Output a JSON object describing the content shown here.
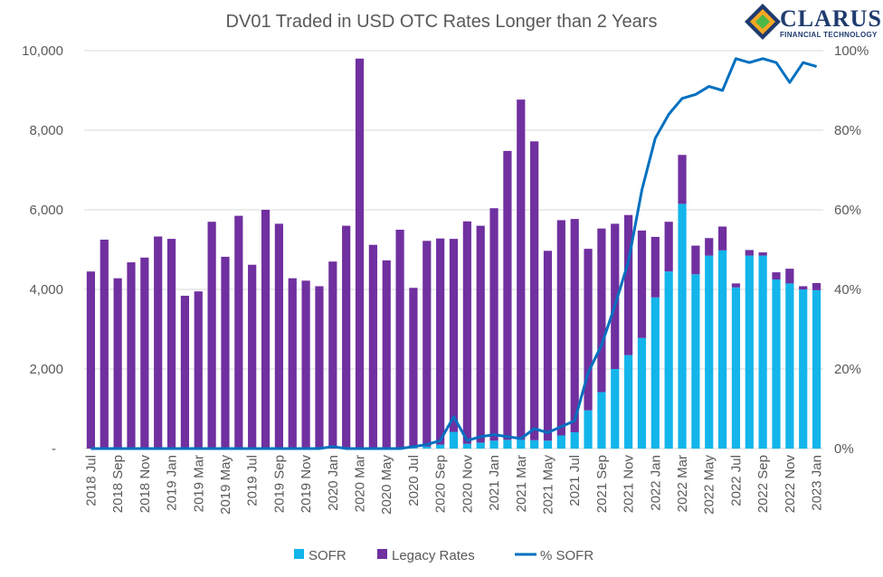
{
  "logo": {
    "name": "CLARUS",
    "tagline": "FINANCIAL TECHNOLOGY"
  },
  "chart_data": {
    "type": "bar",
    "stacked": true,
    "title": "DV01 Traded in USD OTC Rates Longer than 2 Years",
    "categories": [
      "2018 Jul",
      "2018 Aug",
      "2018 Sep",
      "2018 Oct",
      "2018 Nov",
      "2018 Dec",
      "2019 Jan",
      "2019 Feb",
      "2019 Mar",
      "2019 Apr",
      "2019 May",
      "2019 Jun",
      "2019 Jul",
      "2019 Aug",
      "2019 Sep",
      "2019 Oct",
      "2019 Nov",
      "2019 Dec",
      "2020 Jan",
      "2020 Feb",
      "2020 Mar",
      "2020 Apr",
      "2020 May",
      "2020 Jun",
      "2020 Jul",
      "2020 Aug",
      "2020 Sep",
      "2020 Oct",
      "2020 Nov",
      "2020 Dec",
      "2021 Jan",
      "2021 Feb",
      "2021 Mar",
      "2021 Apr",
      "2021 May",
      "2021 Jun",
      "2021 Jul",
      "2021 Aug",
      "2021 Sep",
      "2021 Oct",
      "2021 Nov",
      "2021 Dec",
      "2022 Jan",
      "2022 Feb",
      "2022 Mar",
      "2022 Apr",
      "2022 May",
      "2022 Jun",
      "2022 Jul",
      "2022 Aug",
      "2022 Sep",
      "2022 Oct",
      "2022 Nov",
      "2022 Dec",
      "2023 Jan"
    ],
    "x_tick_labels": [
      "2018 Jul",
      "2018 Sep",
      "2018 Nov",
      "2019 Jan",
      "2019 Mar",
      "2019 May",
      "2019 Jul",
      "2019 Sep",
      "2019 Nov",
      "2020 Jan",
      "2020 Mar",
      "2020 May",
      "2020 Jul",
      "2020 Sep",
      "2020 Nov",
      "2021 Jan",
      "2021 Mar",
      "2021 May",
      "2021 Jul",
      "2021 Sep",
      "2021 Nov",
      "2022 Jan",
      "2022 Mar",
      "2022 May",
      "2022 Jul",
      "2022 Sep",
      "2022 Nov",
      "2023 Jan"
    ],
    "series": [
      {
        "name": "SOFR",
        "type": "bar",
        "color": "#13b5ea",
        "values": [
          0,
          0,
          0,
          0,
          0,
          0,
          0,
          0,
          0,
          0,
          0,
          0,
          0,
          0,
          0,
          0,
          0,
          0,
          0,
          0,
          0,
          0,
          0,
          0,
          20,
          50,
          100,
          420,
          120,
          150,
          200,
          220,
          220,
          210,
          200,
          330,
          410,
          960,
          1420,
          2000,
          2350,
          2780,
          3800,
          4450,
          6150,
          4380,
          4850,
          4980,
          4050,
          4850,
          4850,
          4250,
          4150,
          4000,
          3980
        ]
      },
      {
        "name": "Legacy Rates",
        "type": "bar",
        "color": "#7030a0",
        "values": [
          4450,
          5250,
          4280,
          4680,
          4800,
          5330,
          5270,
          3840,
          3950,
          5700,
          4820,
          5850,
          4620,
          6000,
          5650,
          4280,
          4220,
          4080,
          4700,
          5600,
          9800,
          5120,
          4730,
          5500,
          4020,
          5170,
          5180,
          4850,
          5590,
          5450,
          5840,
          7260,
          8550,
          7510,
          4770,
          5410,
          5360,
          4060,
          4110,
          3650,
          3520,
          2700,
          1520,
          1250,
          1230,
          720,
          440,
          600,
          100,
          140,
          80,
          180,
          370,
          80,
          180
        ]
      },
      {
        "name": "% SOFR",
        "type": "line",
        "axis": "right",
        "color": "#0070c0",
        "values": [
          0,
          0,
          0,
          0,
          0,
          0,
          0,
          0,
          0,
          0,
          0,
          0,
          0,
          0,
          0,
          0,
          0,
          0,
          0.5,
          0,
          0,
          0,
          0,
          0,
          0.5,
          1,
          2,
          8,
          2,
          3,
          3.5,
          3,
          2.5,
          5,
          4,
          5.5,
          7,
          19,
          26,
          36,
          47,
          65,
          78,
          84,
          88,
          89,
          91,
          90,
          98,
          97,
          98,
          97,
          92,
          97,
          96
        ]
      }
    ],
    "y_left": {
      "ticks": [
        "-",
        "2,000",
        "4,000",
        "6,000",
        "8,000",
        "10,000"
      ],
      "min": 0,
      "max": 10000
    },
    "y_right": {
      "ticks": [
        "0%",
        "20%",
        "40%",
        "60%",
        "80%",
        "100%"
      ],
      "min": 0,
      "max": 100
    },
    "grid": true,
    "legend_position": "bottom",
    "legend": [
      "SOFR",
      "Legacy Rates",
      "% SOFR"
    ]
  }
}
